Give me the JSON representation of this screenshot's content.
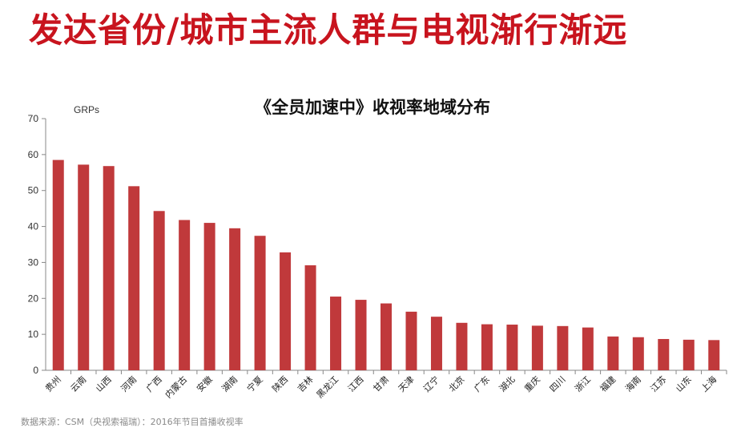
{
  "headline": "发达省份/城市主流人群与电视渐行渐远",
  "source": "数据来源：CSM（央视索福瑞）：2016年节目首播收视率",
  "colors": {
    "bar": "#c0393b",
    "headline": "#c8141e",
    "axis": "#888888"
  },
  "chart_data": {
    "type": "bar",
    "title": "《全员加速中》收视率地域分布",
    "xlabel": "",
    "ylabel": "GRPs",
    "ylim": [
      0,
      70
    ],
    "yticks": [
      0,
      10,
      20,
      30,
      40,
      50,
      60,
      70
    ],
    "grid": false,
    "categories": [
      "贵州",
      "云南",
      "山西",
      "河南",
      "广西",
      "内蒙古",
      "安徽",
      "湖南",
      "宁夏",
      "陕西",
      "吉林",
      "黑龙江",
      "江西",
      "甘肃",
      "天津",
      "辽宁",
      "北京",
      "广东",
      "湖北",
      "重庆",
      "四川",
      "浙江",
      "福建",
      "海南",
      "江苏",
      "山东",
      "上海"
    ],
    "values": [
      58.5,
      57.2,
      56.8,
      51.2,
      44.3,
      41.8,
      41.0,
      39.5,
      37.4,
      32.8,
      29.2,
      20.5,
      19.6,
      18.6,
      16.3,
      14.9,
      13.2,
      12.8,
      12.7,
      12.4,
      12.3,
      11.9,
      9.4,
      9.2,
      8.7,
      8.5,
      8.4
    ]
  }
}
